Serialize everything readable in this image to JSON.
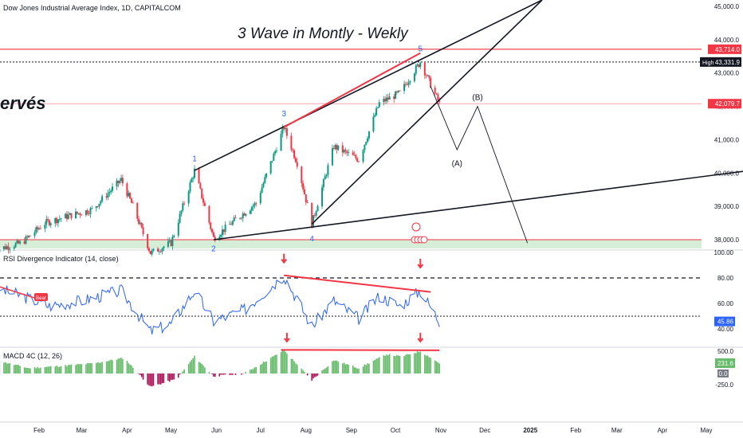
{
  "header": {
    "symbol_title": "Dow Jones Industrial Average Index, 1D, CAPITALCOM"
  },
  "annotation": {
    "main_title": "3 Wave in Montly - Wekly",
    "partial_text": "ervés"
  },
  "wave_labels": [
    "1",
    "2",
    "3",
    "4",
    "5",
    "(A)",
    "(B)"
  ],
  "price_axis": {
    "ticks": [
      "45,000.0",
      "44,000.0",
      "43,000.0",
      "42,000.0",
      "41,000.0",
      "40,000.0",
      "39,000.0",
      "38,000.0"
    ],
    "high_badge": "High",
    "high_value": "43,331.9",
    "resistance_value": "43,714.0",
    "last_value": "42,079.7"
  },
  "rsi_pane": {
    "title": "RSI Divergence Indicator (14, close)",
    "ticks": [
      "100.00",
      "80.00",
      "60.00",
      "40.00"
    ],
    "last_value": "45.86",
    "bear_tag": "Bear"
  },
  "macd_pane": {
    "title": "MACD 4C (12, 26)",
    "ticks": [
      "500.0",
      "-250.0"
    ],
    "last_value": "231.6",
    "zero_value": "0.0"
  },
  "time_axis": [
    "Feb",
    "Mar",
    "Apr",
    "May",
    "Jun",
    "Jul",
    "Aug",
    "Sep",
    "Oct",
    "Nov",
    "Dec",
    "2025",
    "Feb",
    "Mar",
    "Apr",
    "May"
  ],
  "colors": {
    "up": "#089981",
    "down": "#f23645",
    "rsi_line": "#2962ff",
    "macd_pos": "#66bb6a",
    "macd_neg": "#ad1457",
    "resistance": "#f23645",
    "wave_blue": "#2962ff"
  },
  "chart_data": {
    "type": "candlestick",
    "instrument": "Dow Jones Industrial Average Index",
    "timeframe": "1D",
    "ylim": [
      37800,
      45200
    ],
    "resistance_level": 43714.0,
    "high": 43331.9,
    "last_price": 42079.7,
    "support_level": 38000,
    "waves": [
      {
        "label": "1",
        "date": "2024-05-17",
        "price": 40077
      },
      {
        "label": "2",
        "date": "2024-05-30",
        "price": 38000
      },
      {
        "label": "3",
        "date": "2024-07-17",
        "price": 41376
      },
      {
        "label": "4",
        "date": "2024-08-05",
        "price": 38470
      },
      {
        "label": "5",
        "date": "2024-10-18",
        "price": 43331.9
      },
      {
        "label": "(A)",
        "date": "2024-11-12",
        "price": 40700
      },
      {
        "label": "(B)",
        "date": "2024-11-26",
        "price": 42000
      }
    ],
    "projection_end": {
      "date": "2024-12-30",
      "price": 37900
    },
    "rsi": {
      "length": 14,
      "ylim": [
        30,
        100
      ],
      "overbought": 80,
      "mid": 50,
      "last": 45.86
    },
    "macd": {
      "fast": 12,
      "slow": 26,
      "ylim": [
        -300,
        550
      ],
      "last": 231.6
    }
  }
}
